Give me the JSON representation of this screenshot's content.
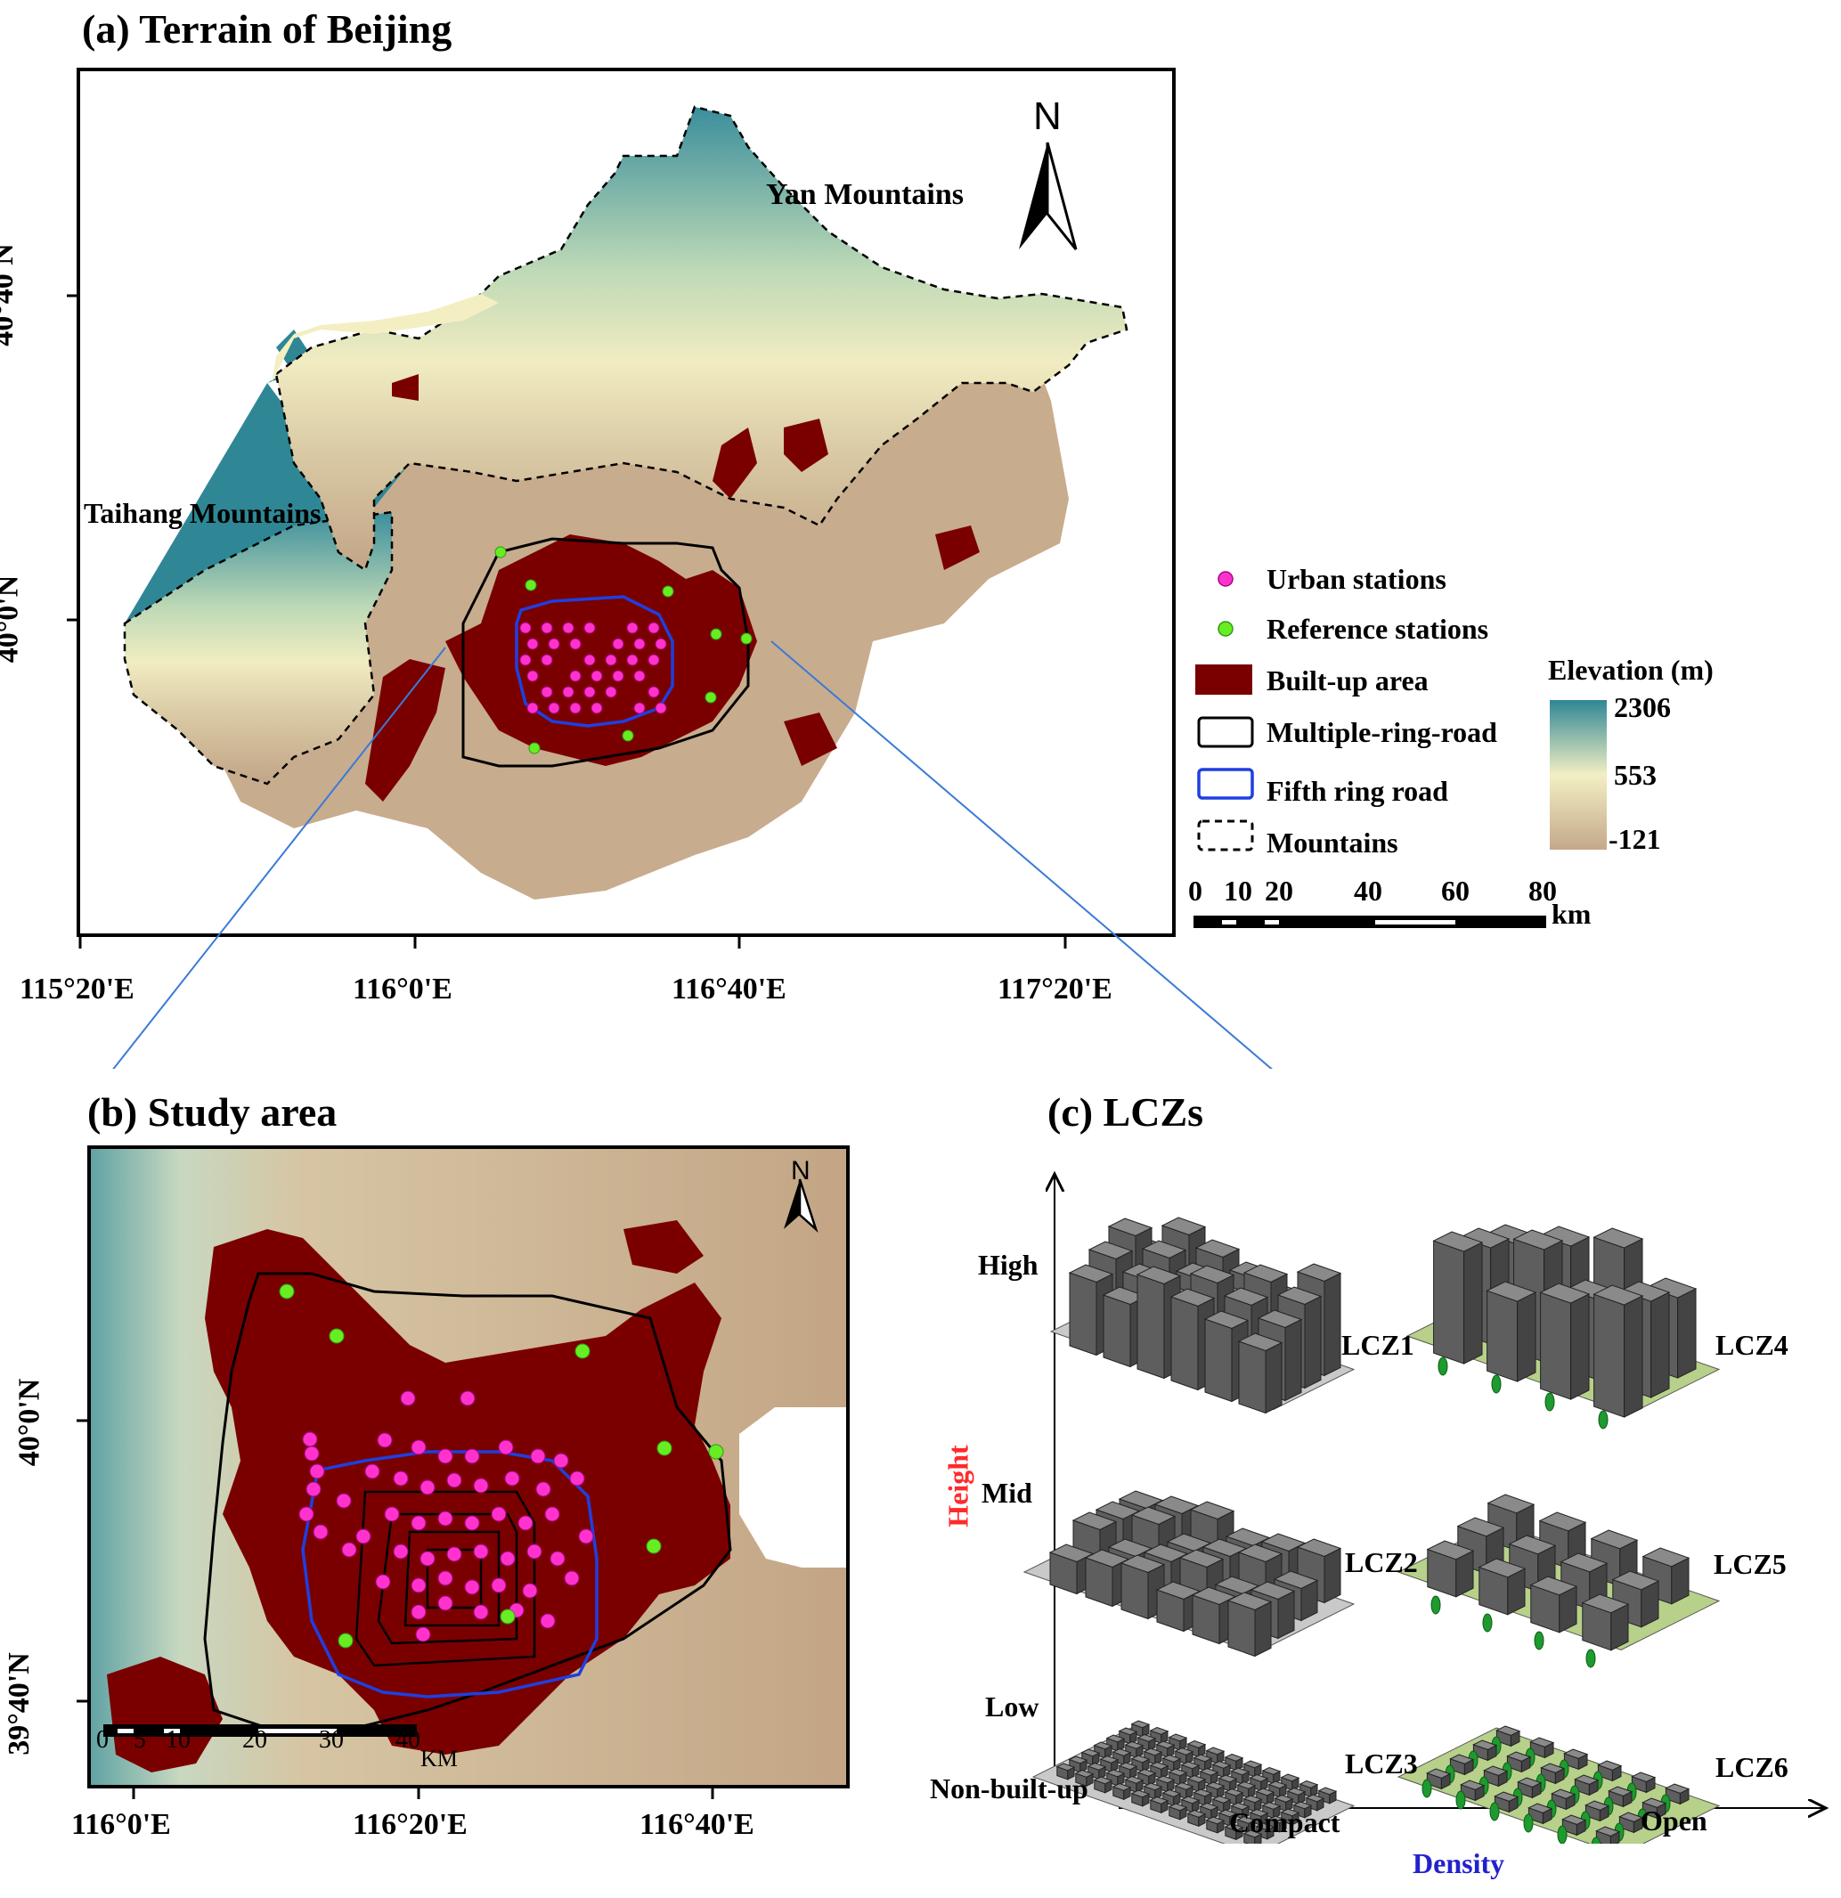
{
  "panel_a": {
    "title": "(a) Terrain of Beijing",
    "north": "N",
    "labels": {
      "yan": "Yan Mountains",
      "taihang": "Taihang Mountains"
    },
    "lon_ticks": [
      "115°20'E",
      "116°0'E",
      "116°40'E",
      "117°20'E"
    ],
    "lat_ticks": [
      "40°40'N",
      "40°0'N"
    ]
  },
  "legend": {
    "urban": "Urban stations",
    "reference": "Reference stations",
    "builtup": "Built-up area",
    "ring": "Multiple-ring-road",
    "fifth": "Fifth ring road",
    "mountains": "Mountains",
    "elevation_title": "Elevation (m)",
    "elev_max": "2306",
    "elev_mid": "553",
    "elev_min": "-121",
    "scale_ticks": [
      "0",
      "10",
      "20",
      "40",
      "60",
      "80"
    ],
    "scale_unit": "km"
  },
  "panel_b": {
    "title": "(b) Study area",
    "north": "N",
    "lon_ticks": [
      "116°0'E",
      "116°20'E",
      "116°40'E"
    ],
    "lat_ticks": [
      "40°0'N",
      "39°40'N"
    ],
    "scale_ticks": [
      "0",
      "5",
      "10",
      "20",
      "30",
      "40"
    ],
    "scale_unit": "KM"
  },
  "panel_c": {
    "title": "(c) LCZs",
    "y_axis": "Height",
    "x_axis": "Density",
    "y_levels": [
      "High",
      "Mid",
      "Low",
      "Non-built-up"
    ],
    "x_levels": [
      "Compact",
      "Open"
    ],
    "zones": [
      "LCZ1",
      "LCZ4",
      "LCZ2",
      "LCZ5",
      "LCZ3",
      "LCZ6"
    ]
  },
  "colors": {
    "built_up": "#7a0000",
    "urban_station": "#ff33cc",
    "reference_station": "#66ee22",
    "fifth_ring": "#1f3fe0",
    "elev_high": "#2b8a9a",
    "elev_mid": "#f4f1c3",
    "elev_low": "#c4a88a",
    "height_label": "#ff2a2a",
    "density_label": "#2222cc"
  }
}
